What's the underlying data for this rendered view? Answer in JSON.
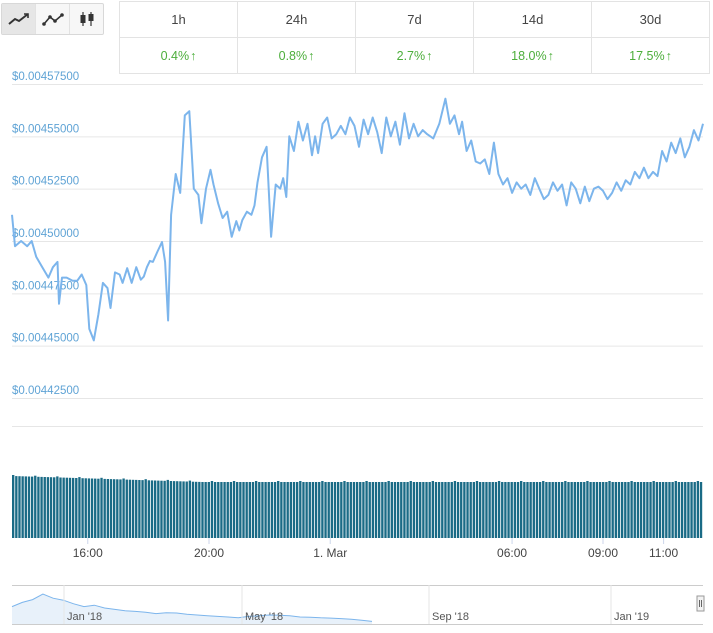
{
  "chart_buttons": [
    {
      "name": "line-chart-icon",
      "active": true
    },
    {
      "name": "dotted-line-chart-icon",
      "active": false
    },
    {
      "name": "candlestick-chart-icon",
      "active": false
    }
  ],
  "performance": {
    "periods": [
      "1h",
      "24h",
      "7d",
      "14d",
      "30d"
    ],
    "changes": [
      "0.4%",
      "0.8%",
      "2.7%",
      "18.0%",
      "17.5%"
    ],
    "up_arrow": "↑",
    "positive_color": "#4cae3b"
  },
  "chart_data": {
    "type": "line",
    "title": "",
    "xlabel": "",
    "ylabel": "",
    "y_ticks": [
      "$0.00457500",
      "$0.00455000",
      "$0.00452500",
      "$0.00450000",
      "$0.00447500",
      "$0.00445000",
      "$0.00442500"
    ],
    "x_ticks": [
      "16:00",
      "20:00",
      "1. Mar",
      "06:00",
      "09:00",
      "11:00"
    ],
    "ylim": [
      0.004425,
      0.004575
    ],
    "x_range_hours": [
      13.5,
      36.3
    ],
    "grid": true,
    "line_color": "#7cb5ec",
    "volume_color": "#1a6b86",
    "series": [
      {
        "x": [
          13.5,
          13.6,
          13.8,
          14.0,
          14.15,
          14.3,
          14.5,
          14.7,
          14.85,
          15.0,
          15.05,
          15.15,
          15.3,
          15.5,
          15.65,
          15.8,
          15.95,
          16.05,
          16.2,
          16.35,
          16.5,
          16.65,
          16.75,
          16.9,
          17.05,
          17.15,
          17.3,
          17.45,
          17.6,
          17.75,
          17.85,
          17.95,
          18.05,
          18.15,
          18.3,
          18.45,
          18.55,
          18.65,
          18.75,
          18.9,
          19.05,
          19.2,
          19.35,
          19.5,
          19.65,
          19.75,
          19.9,
          20.05,
          20.15,
          20.3,
          20.45,
          20.6,
          20.75,
          20.9,
          21.0,
          21.1,
          21.25,
          21.4,
          21.5,
          21.6,
          21.75,
          21.9,
          22.05,
          22.2,
          22.35,
          22.45,
          22.55,
          22.65,
          22.8,
          22.95,
          23.1,
          23.25,
          23.4,
          23.5,
          23.6,
          23.75,
          23.9,
          24.05,
          24.2,
          24.35,
          24.5,
          24.65,
          24.8,
          24.95,
          25.1,
          25.25,
          25.4,
          25.55,
          25.7,
          25.85,
          26.0,
          26.15,
          26.3,
          26.45,
          26.6,
          26.75,
          26.9,
          27.05,
          27.2,
          27.4,
          27.6,
          27.8,
          27.95,
          28.1,
          28.25,
          28.35,
          28.5,
          28.65,
          28.8,
          28.95,
          29.1,
          29.25,
          29.4,
          29.55,
          29.7,
          29.85,
          30.0,
          30.15,
          30.3,
          30.45,
          30.6,
          30.75,
          30.9,
          31.05,
          31.2,
          31.35,
          31.5,
          31.65,
          31.8,
          31.95,
          32.1,
          32.25,
          32.4,
          32.55,
          32.7,
          32.85,
          33.0,
          33.15,
          33.3,
          33.45,
          33.6,
          33.75,
          33.9,
          34.05,
          34.2,
          34.35,
          34.5,
          34.65,
          34.8,
          34.95,
          35.1,
          35.25,
          35.4,
          35.55,
          35.7,
          35.85,
          36.0,
          36.15,
          36.3
        ],
        "values": [
          0.0045125,
          0.0044975,
          0.0045,
          0.0044975,
          0.0045,
          0.0044925,
          0.0044875,
          0.0044825,
          0.0044875,
          0.00449,
          0.00447,
          0.0044825,
          0.0044825,
          0.004481,
          0.004481,
          0.004484,
          0.004479,
          0.004458,
          0.0044525,
          0.004465,
          0.00448,
          0.0044775,
          0.004468,
          0.004485,
          0.004484,
          0.00448,
          0.004487,
          0.00448,
          0.0044875,
          0.0044815,
          0.004483,
          0.0044875,
          0.0044905,
          0.00449,
          0.004495,
          0.0044995,
          0.00449,
          0.004462,
          0.0045125,
          0.004532,
          0.004523,
          0.00456,
          0.004562,
          0.004525,
          0.004522,
          0.0045085,
          0.004525,
          0.004534,
          0.004527,
          0.004518,
          0.004511,
          0.004514,
          0.004502,
          0.0045095,
          0.004505,
          0.00451,
          0.004514,
          0.0045125,
          0.004517,
          0.004528,
          0.00454,
          0.004545,
          0.004502,
          0.004527,
          0.004525,
          0.00453,
          0.004521,
          0.00455,
          0.004543,
          0.004557,
          0.004548,
          0.004556,
          0.004541,
          0.00455,
          0.004542,
          0.004556,
          0.004559,
          0.004549,
          0.004551,
          0.004555,
          0.004551,
          0.004559,
          0.004555,
          0.004545,
          0.004558,
          0.004551,
          0.004559,
          0.004552,
          0.004542,
          0.004559,
          0.00455,
          0.004557,
          0.004546,
          0.004561,
          0.004549,
          0.004556,
          0.00455,
          0.004553,
          0.004551,
          0.004549,
          0.004556,
          0.004568,
          0.004556,
          0.00456,
          0.004551,
          0.004557,
          0.004543,
          0.004548,
          0.004538,
          0.004537,
          0.004539,
          0.004532,
          0.004547,
          0.004532,
          0.004527,
          0.00453,
          0.004523,
          0.004528,
          0.004525,
          0.004527,
          0.004522,
          0.00453,
          0.004525,
          0.00452,
          0.004522,
          0.004528,
          0.004524,
          0.004527,
          0.004517,
          0.004528,
          0.004525,
          0.004518,
          0.004526,
          0.004519,
          0.004525,
          0.004526,
          0.004524,
          0.00452,
          0.004523,
          0.004528,
          0.004524,
          0.004529,
          0.004527,
          0.004533,
          0.00453,
          0.004535,
          0.00453,
          0.004533,
          0.004531,
          0.004543,
          0.004538,
          0.004547,
          0.004542,
          0.004549,
          0.00454,
          0.004545,
          0.004553,
          0.004548,
          0.004556
        ]
      }
    ]
  },
  "navigator": {
    "labels": [
      "Jan '18",
      "May '18",
      "Sep '18",
      "Jan '19"
    ],
    "series_values": [
      0.55,
      0.7,
      0.8,
      1.0,
      0.85,
      0.78,
      0.65,
      0.55,
      0.6,
      0.5,
      0.45,
      0.4,
      0.38,
      0.35,
      0.3,
      0.33,
      0.32,
      0.28,
      0.25,
      0.22,
      0.2,
      0.18,
      0.15,
      0.2,
      0.22,
      0.25,
      0.24,
      0.22,
      0.18,
      0.17,
      0.15,
      0.14,
      0.12,
      0.1,
      0.06,
      0.02
    ],
    "handle_icon": "scroll-handle-icon"
  }
}
